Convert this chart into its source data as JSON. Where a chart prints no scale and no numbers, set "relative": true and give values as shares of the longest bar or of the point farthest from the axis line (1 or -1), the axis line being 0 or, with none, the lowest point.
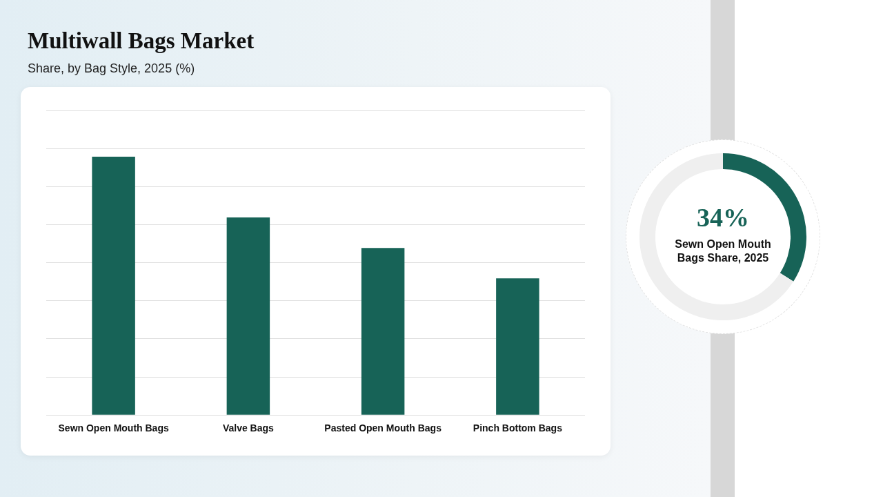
{
  "chart_data": [
    {
      "type": "bar",
      "title": "Multiwall Bags Market",
      "subtitle": "Share, by Bag Style, 2025 (%)",
      "categories": [
        "Sewn Open Mouth Bags",
        "Valve Bags",
        "Pasted Open Mouth Bags",
        "Pinch Bottom Bags"
      ],
      "values": [
        1,
        0.765,
        0.647,
        0.529
      ],
      "color": "#176357",
      "relative": true,
      "grid": "y",
      "legend": false
    },
    {
      "type": "donut",
      "categories": [
        "Sewn Open Mouth Bags Share, 2025",
        null
      ],
      "values": [
        34,
        66
      ],
      "colors": [
        "#176357",
        "#efefef"
      ],
      "value_labels": [
        "34%",
        null
      ],
      "legend": false
    }
  ]
}
